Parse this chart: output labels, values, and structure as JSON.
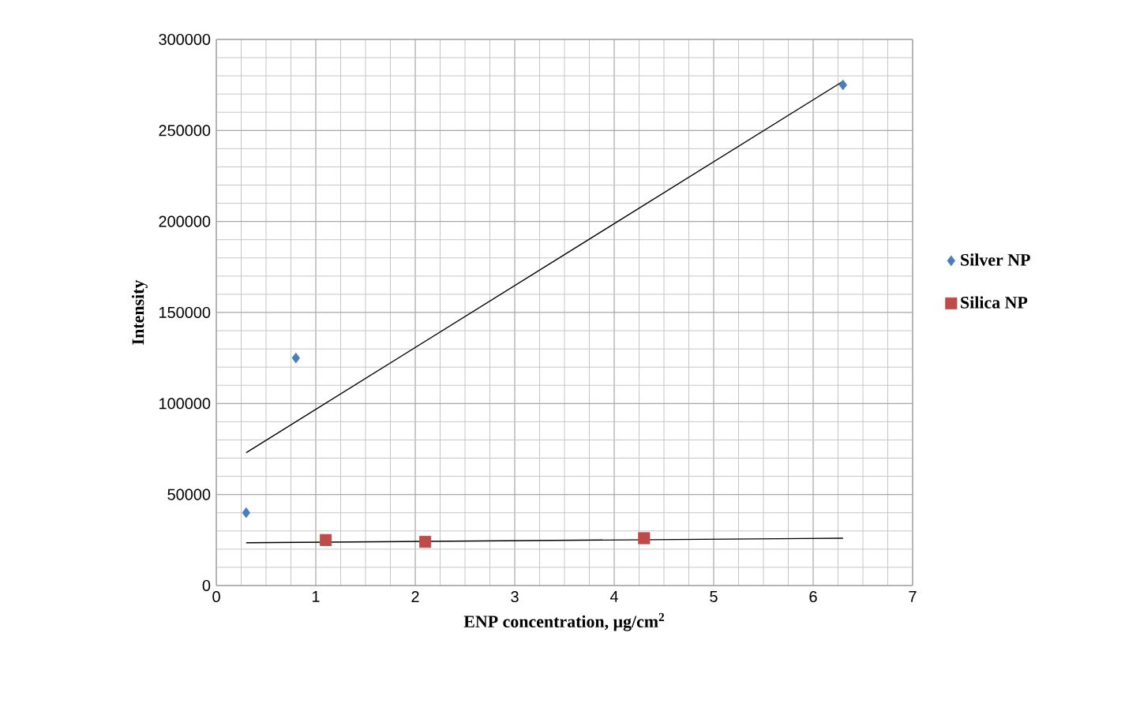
{
  "chart_data": {
    "type": "scatter",
    "xlabel": "ENP concentration, μg/cm$^{2}$",
    "ylabel": "Intensity",
    "xlim": [
      0,
      7
    ],
    "xticks": [
      0,
      1,
      2,
      3,
      4,
      5,
      6,
      7
    ],
    "ylim": [
      0,
      300000
    ],
    "yticks": [
      0,
      50000,
      100000,
      150000,
      200000,
      250000,
      300000
    ],
    "grid": true,
    "legend": "right",
    "series": [
      {
        "name": "Silver NP",
        "color": "#4a7ebb",
        "marker": "diamond",
        "x": [
          0.3,
          0.8,
          6.3
        ],
        "values": [
          40000,
          125000,
          275000
        ]
      },
      {
        "name": "Silica NP",
        "color": "#be4b48",
        "marker": "square",
        "x": [
          1.1,
          2.1,
          4.3
        ],
        "values": [
          25000,
          24000,
          26000
        ]
      },
      {
        "type": "line",
        "color": "#000000",
        "marker": "none",
        "x": [
          0.3,
          6.3
        ],
        "values": [
          73000,
          277000
        ]
      },
      {
        "type": "line",
        "color": "#000000",
        "marker": "none",
        "x": [
          0.3,
          6.3
        ],
        "values": [
          23500,
          26000
        ]
      }
    ]
  }
}
